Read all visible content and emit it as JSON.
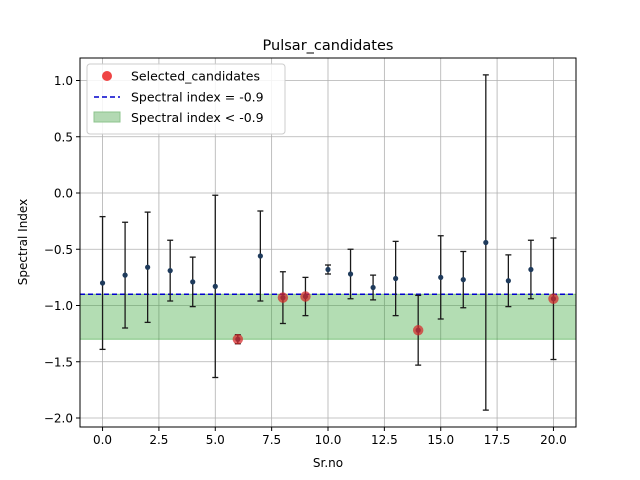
{
  "chart_data": {
    "type": "scatter",
    "title": "Pulsar_candidates",
    "xlabel": "Sr.no",
    "ylabel": "Spectral Index",
    "xlim": [
      -1,
      21
    ],
    "ylim": [
      -2.08,
      1.2
    ],
    "xticks": [
      0.0,
      2.5,
      5.0,
      7.5,
      10.0,
      12.5,
      15.0,
      17.5,
      20.0
    ],
    "xtick_labels": [
      "0.0",
      "2.5",
      "5.0",
      "7.5",
      "10.0",
      "12.5",
      "15.0",
      "17.5",
      "20.0"
    ],
    "yticks": [
      -2.0,
      -1.5,
      -1.0,
      -0.5,
      0.0,
      0.5,
      1.0
    ],
    "ytick_labels": [
      "−2.0",
      "−1.5",
      "−1.0",
      "−0.5",
      "0.0",
      "0.5",
      "1.0"
    ],
    "grid": true,
    "legend_position": "top-left",
    "series": [
      {
        "kind": "errorbar",
        "color": "#1f3b5c",
        "x": [
          0,
          1,
          2,
          3,
          4,
          5,
          6,
          7,
          8,
          9,
          10,
          11,
          12,
          13,
          14,
          15,
          16,
          17,
          18,
          19,
          20
        ],
        "y": [
          -0.8,
          -0.73,
          -0.66,
          -0.69,
          -0.79,
          -0.83,
          -1.3,
          -0.56,
          -0.93,
          -0.92,
          -0.68,
          -0.72,
          -0.84,
          -0.76,
          -1.22,
          -0.75,
          -0.77,
          -0.44,
          -0.78,
          -0.68,
          -0.94
        ],
        "err": [
          0.59,
          0.47,
          0.49,
          0.27,
          0.22,
          0.81,
          0.04,
          0.4,
          0.23,
          0.17,
          0.04,
          0.22,
          0.11,
          0.33,
          0.31,
          0.37,
          0.25,
          1.49,
          0.23,
          0.26,
          0.54
        ]
      },
      {
        "name": "Selected_candidates",
        "kind": "scatter",
        "color": "#d62728",
        "x": [
          6,
          8,
          9,
          14,
          20
        ],
        "y": [
          -1.3,
          -0.93,
          -0.92,
          -1.22,
          -0.94
        ]
      },
      {
        "name": "Spectral index = -0.9",
        "kind": "hline",
        "color": "#0000cc",
        "y": -0.9
      },
      {
        "name": "Spectral index < -0.9",
        "kind": "band",
        "color": "#2ca02c",
        "y_range": [
          -1.3,
          -0.9
        ]
      }
    ]
  }
}
